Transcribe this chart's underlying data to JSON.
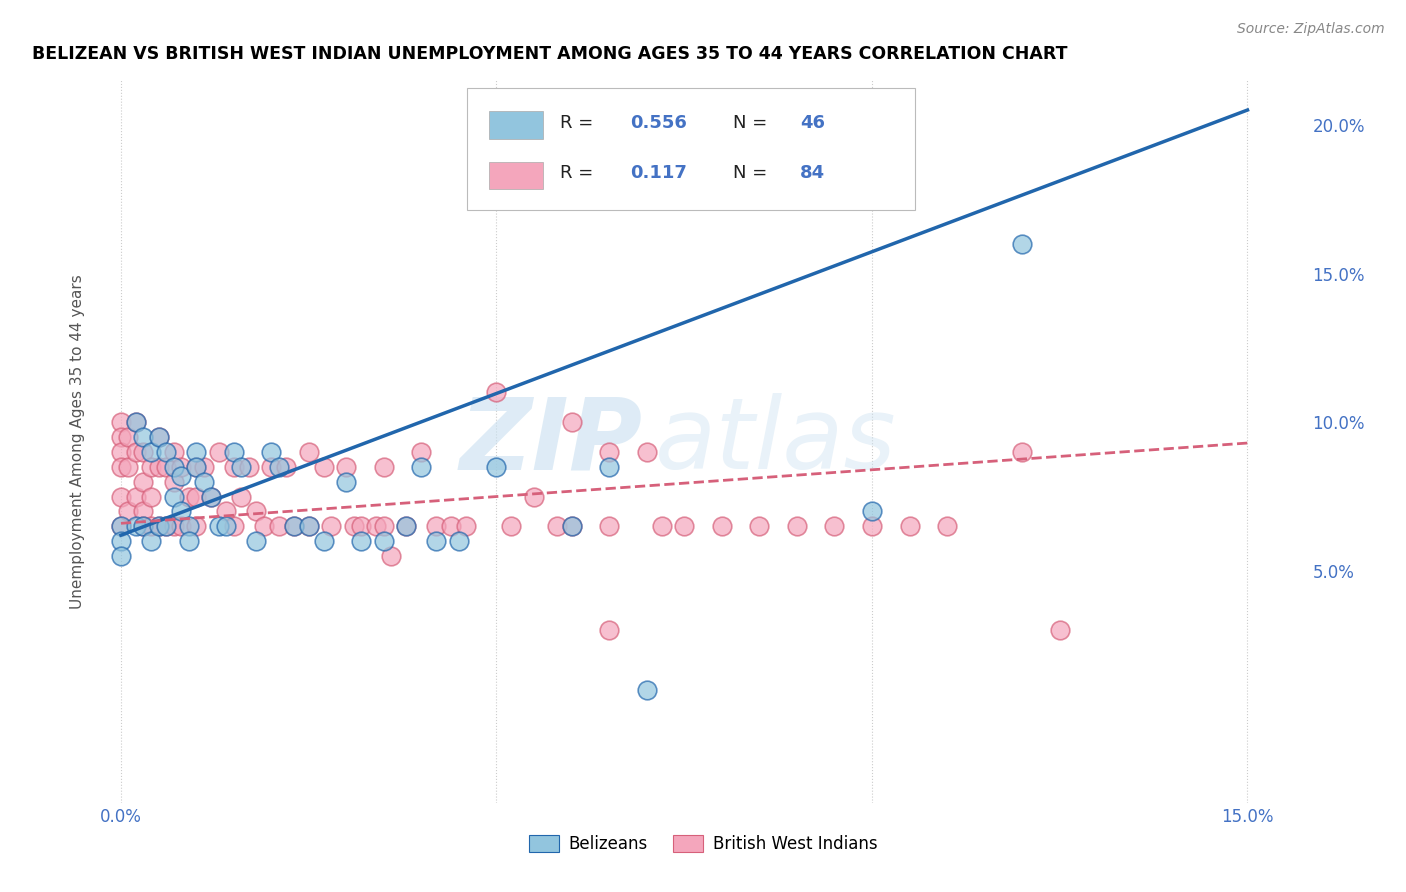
{
  "title": "BELIZEAN VS BRITISH WEST INDIAN UNEMPLOYMENT AMONG AGES 35 TO 44 YEARS CORRELATION CHART",
  "source": "Source: ZipAtlas.com",
  "ylabel": "Unemployment Among Ages 35 to 44 years",
  "belizean_color": "#92c5de",
  "bwi_color": "#f4a6bc",
  "belizean_line_color": "#2166ac",
  "bwi_line_color": "#d6607a",
  "legend_R1": "0.556",
  "legend_N1": "46",
  "legend_R2": "0.117",
  "legend_N2": "84",
  "watermark_zip": "ZIP",
  "watermark_atlas": "atlas",
  "tick_color": "#4472c4",
  "bel_line_x0": 0.0,
  "bel_line_y0": 0.062,
  "bel_line_x1": 0.15,
  "bel_line_y1": 0.205,
  "bwi_line_x0": 0.0,
  "bwi_line_y0": 0.066,
  "bwi_line_x1": 0.15,
  "bwi_line_y1": 0.093,
  "xlim_min": -0.003,
  "xlim_max": 0.158,
  "ylim_min": -0.028,
  "ylim_max": 0.215,
  "bel_x": [
    0.0,
    0.0,
    0.0,
    0.002,
    0.002,
    0.003,
    0.003,
    0.004,
    0.004,
    0.005,
    0.005,
    0.006,
    0.006,
    0.007,
    0.007,
    0.008,
    0.008,
    0.009,
    0.009,
    0.01,
    0.01,
    0.011,
    0.012,
    0.013,
    0.014,
    0.015,
    0.016,
    0.018,
    0.02,
    0.021,
    0.023,
    0.025,
    0.027,
    0.03,
    0.032,
    0.035,
    0.038,
    0.04,
    0.042,
    0.045,
    0.05,
    0.06,
    0.065,
    0.07,
    0.1,
    0.12
  ],
  "bel_y": [
    0.065,
    0.06,
    0.055,
    0.1,
    0.065,
    0.095,
    0.065,
    0.09,
    0.06,
    0.095,
    0.065,
    0.09,
    0.065,
    0.085,
    0.075,
    0.082,
    0.07,
    0.065,
    0.06,
    0.09,
    0.085,
    0.08,
    0.075,
    0.065,
    0.065,
    0.09,
    0.085,
    0.06,
    0.09,
    0.085,
    0.065,
    0.065,
    0.06,
    0.08,
    0.06,
    0.06,
    0.065,
    0.085,
    0.06,
    0.06,
    0.085,
    0.065,
    0.085,
    0.01,
    0.07,
    0.16
  ],
  "bwi_x": [
    0.0,
    0.0,
    0.0,
    0.0,
    0.0,
    0.0,
    0.001,
    0.001,
    0.001,
    0.002,
    0.002,
    0.002,
    0.003,
    0.003,
    0.003,
    0.003,
    0.004,
    0.004,
    0.004,
    0.005,
    0.005,
    0.005,
    0.006,
    0.006,
    0.007,
    0.007,
    0.007,
    0.008,
    0.008,
    0.009,
    0.01,
    0.01,
    0.01,
    0.011,
    0.012,
    0.013,
    0.014,
    0.015,
    0.015,
    0.016,
    0.017,
    0.018,
    0.019,
    0.02,
    0.021,
    0.022,
    0.023,
    0.025,
    0.025,
    0.027,
    0.028,
    0.03,
    0.031,
    0.032,
    0.034,
    0.035,
    0.035,
    0.036,
    0.038,
    0.04,
    0.042,
    0.044,
    0.046,
    0.05,
    0.052,
    0.055,
    0.058,
    0.06,
    0.06,
    0.065,
    0.065,
    0.065,
    0.07,
    0.072,
    0.075,
    0.08,
    0.085,
    0.09,
    0.095,
    0.1,
    0.105,
    0.11,
    0.12,
    0.125
  ],
  "bwi_y": [
    0.1,
    0.095,
    0.09,
    0.085,
    0.075,
    0.065,
    0.095,
    0.085,
    0.07,
    0.1,
    0.09,
    0.075,
    0.09,
    0.08,
    0.07,
    0.065,
    0.085,
    0.075,
    0.065,
    0.095,
    0.085,
    0.065,
    0.085,
    0.065,
    0.09,
    0.08,
    0.065,
    0.085,
    0.065,
    0.075,
    0.085,
    0.075,
    0.065,
    0.085,
    0.075,
    0.09,
    0.07,
    0.085,
    0.065,
    0.075,
    0.085,
    0.07,
    0.065,
    0.085,
    0.065,
    0.085,
    0.065,
    0.09,
    0.065,
    0.085,
    0.065,
    0.085,
    0.065,
    0.065,
    0.065,
    0.085,
    0.065,
    0.055,
    0.065,
    0.09,
    0.065,
    0.065,
    0.065,
    0.11,
    0.065,
    0.075,
    0.065,
    0.1,
    0.065,
    0.09,
    0.065,
    0.03,
    0.09,
    0.065,
    0.065,
    0.065,
    0.065,
    0.065,
    0.065,
    0.065,
    0.065,
    0.065,
    0.09,
    0.03
  ]
}
